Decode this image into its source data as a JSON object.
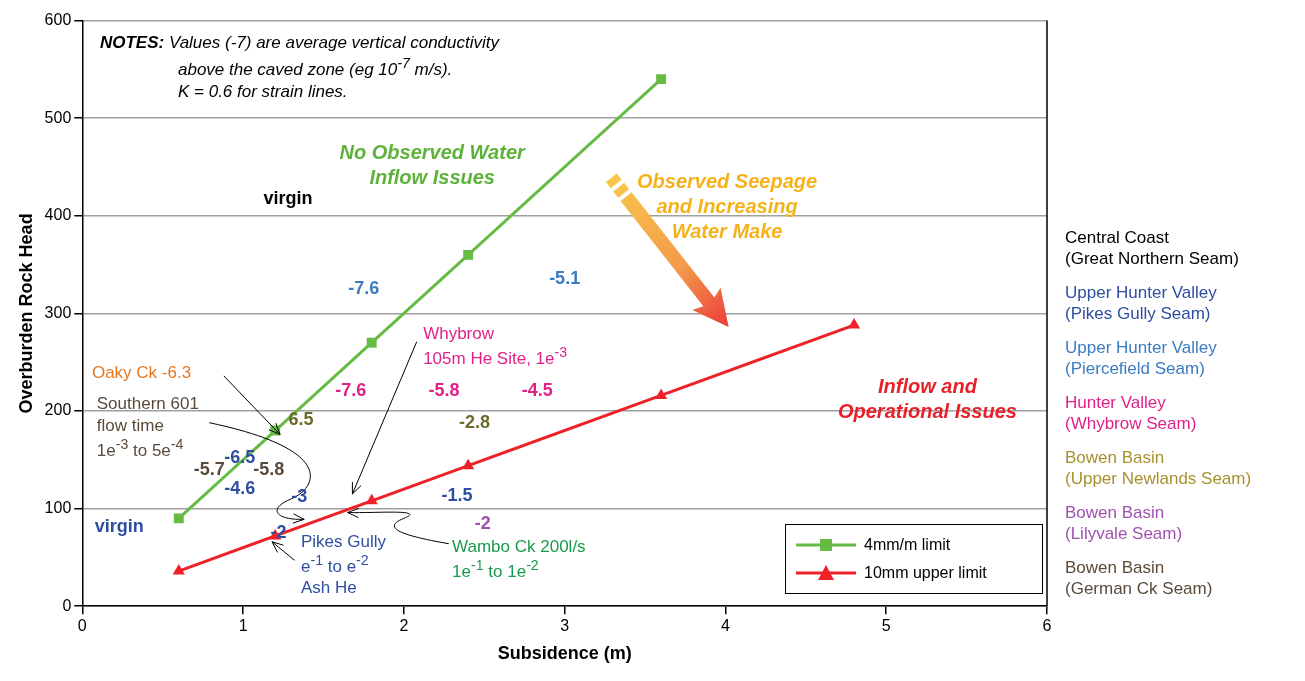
{
  "chart_data": {
    "type": "line",
    "xlabel": "Subsidence (m)",
    "ylabel": "Overburden Rock Head",
    "xlim": [
      0,
      6
    ],
    "xticks": [
      0,
      1,
      2,
      3,
      4,
      5,
      6
    ],
    "ylim": [
      0,
      600
    ],
    "yticks": [
      0,
      100,
      200,
      300,
      400,
      500,
      600
    ],
    "grid": "y",
    "legend": "bottom right",
    "line_style": "solid",
    "series": [
      {
        "name": "4mm/m limit",
        "color": "#66bb44",
        "marker": "square",
        "x": [
          0.6,
          1.2,
          1.8,
          2.4,
          3.6
        ],
        "values": [
          90,
          180,
          270,
          360,
          540
        ]
      },
      {
        "name": "10mm upper limit",
        "color": "#ee2128",
        "marker": "triangle",
        "x": [
          0.6,
          1.2,
          1.8,
          2.4,
          3.6,
          4.8
        ],
        "values": [
          36,
          72,
          108,
          144,
          216,
          288
        ]
      }
    ],
    "annotations": [
      "NOTES: Values (-7) are average vertical conductivity\nabove the caved zone (eg 10$^{-7}$ m/s).\nK = 0.6 for strain lines.",
      "No Observed Water\nInflow Issues",
      "Observed Seepage\nand Increasing\nWater Make",
      "Inflow and\nOperational Issues",
      "Oaky Ck -6.3",
      "Southern 601\nflow time\n1e$^{-3}$ to 5e$^{-4}$",
      "Whybrow\n105m He Site, 1e$^{-3}$",
      {
        "text": "Wambo Ck 200l/s\n1e$^{-1}$ to 1e$^{-2}$",
        "x": 1.65,
        "y": 99
      },
      "Pikes Gully\ne$^{-1}$ to e$^{-2}$\nAsh He",
      "virgin",
      "virgin",
      "-6.5",
      "-4.6",
      "-3",
      "-2",
      "-1.5",
      "-7.6",
      "-5.1",
      "-7.6",
      "-5.8",
      "-4.5",
      "6.5",
      "-2.8",
      "-2",
      "-5.7",
      "-5.8",
      "Central Coast\n(Great Northern Seam)",
      "Upper Hunter Valley\n(Pikes Gully Seam)",
      "Upper Hunter Valley\n(Piercefield Seam)",
      "Hunter Valley\n(Whybrow Seam)",
      "Bowen Basin\n(Upper Newlands Seam)",
      "Bowen Basin\n(Lilyvale Seam)",
      "Bowen Basin\n(German Ck Seam)"
    ]
  }
}
